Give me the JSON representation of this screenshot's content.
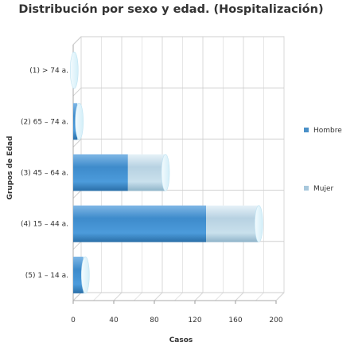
{
  "chart_data": {
    "type": "bar",
    "orientation": "horizontal",
    "stacked": true,
    "title": "Distribución por sexo y edad. (Hospitalización)",
    "xlabel": "Casos",
    "ylabel": "Grupos de Edad",
    "categories": [
      "(1) > 74 a.",
      "(2) 65 – 74 a.",
      "(3) 45 – 64 a.",
      "(4) 15 – 44 a.",
      "(5) 1 – 14 a."
    ],
    "series": [
      {
        "name": "Hombre",
        "values": [
          1,
          4,
          54,
          131,
          10
        ],
        "color": "#4A90C8"
      },
      {
        "name": "Mujer",
        "values": [
          0,
          2,
          37,
          52,
          2
        ],
        "color": "#A8C8DC"
      }
    ],
    "xlim": [
      0,
      200
    ],
    "xticks": [
      0,
      40,
      80,
      120,
      160,
      200
    ],
    "grid": true,
    "legend_position": "right"
  }
}
